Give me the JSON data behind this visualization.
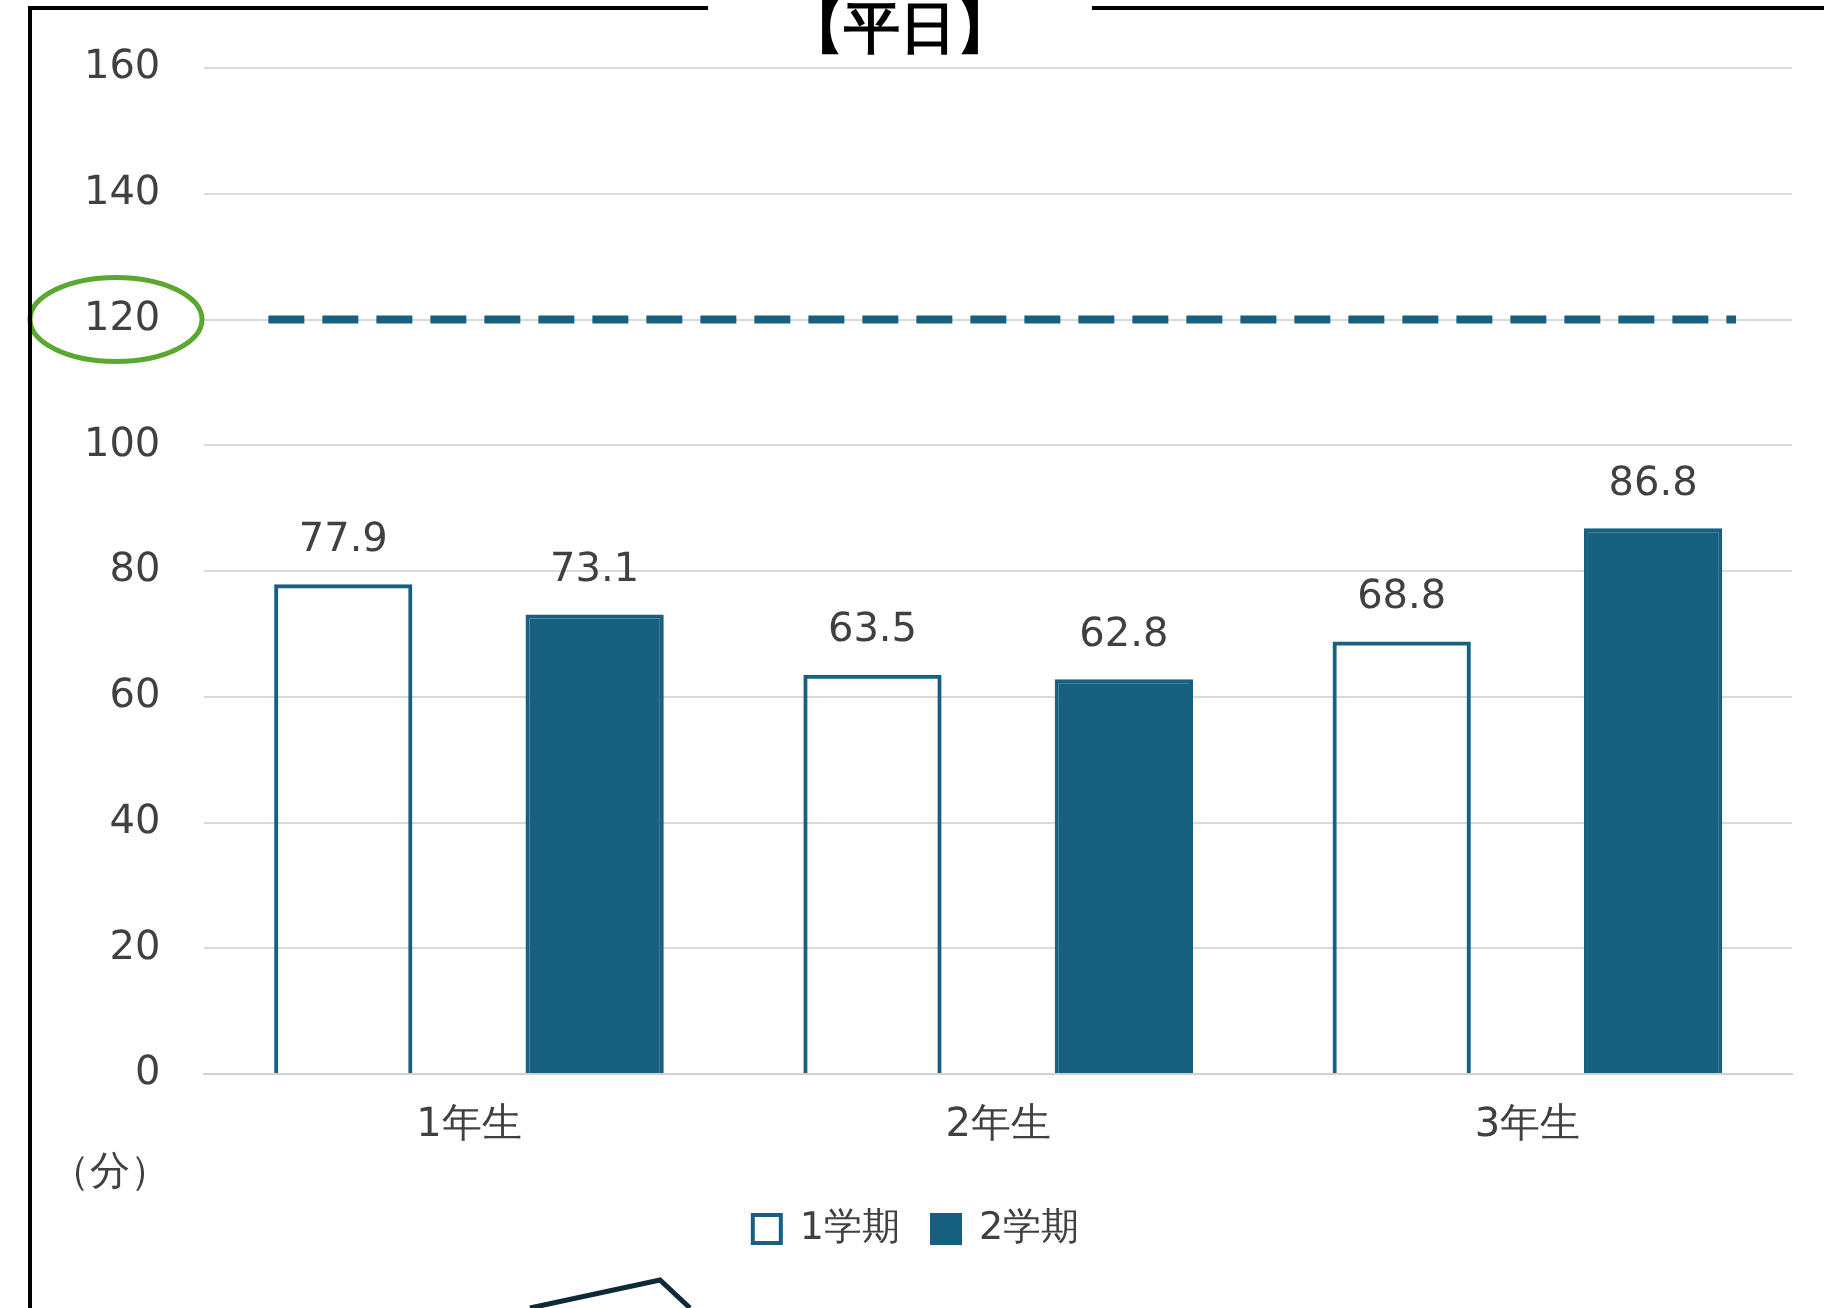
{
  "chart_data": {
    "type": "bar",
    "title": "【平日】",
    "ylabel": "（分）",
    "categories": [
      "1年生",
      "2年生",
      "3年生"
    ],
    "series": [
      {
        "name": "1学期",
        "color": "#17607f",
        "values": [
          77.9,
          63.5,
          68.8
        ]
      },
      {
        "name": "2学期",
        "color": "#17607f",
        "values": [
          73.1,
          62.8,
          86.8
        ]
      }
    ],
    "ylim": [
      0,
      160
    ],
    "yticks": [
      0,
      20,
      40,
      60,
      80,
      100,
      120,
      140,
      160
    ],
    "grid": "y",
    "legend": "bottom",
    "data_labels": true,
    "ref_lines": [
      {
        "axis": "y",
        "value": 120,
        "color": "#17607f",
        "line_style": "dashed"
      }
    ]
  }
}
